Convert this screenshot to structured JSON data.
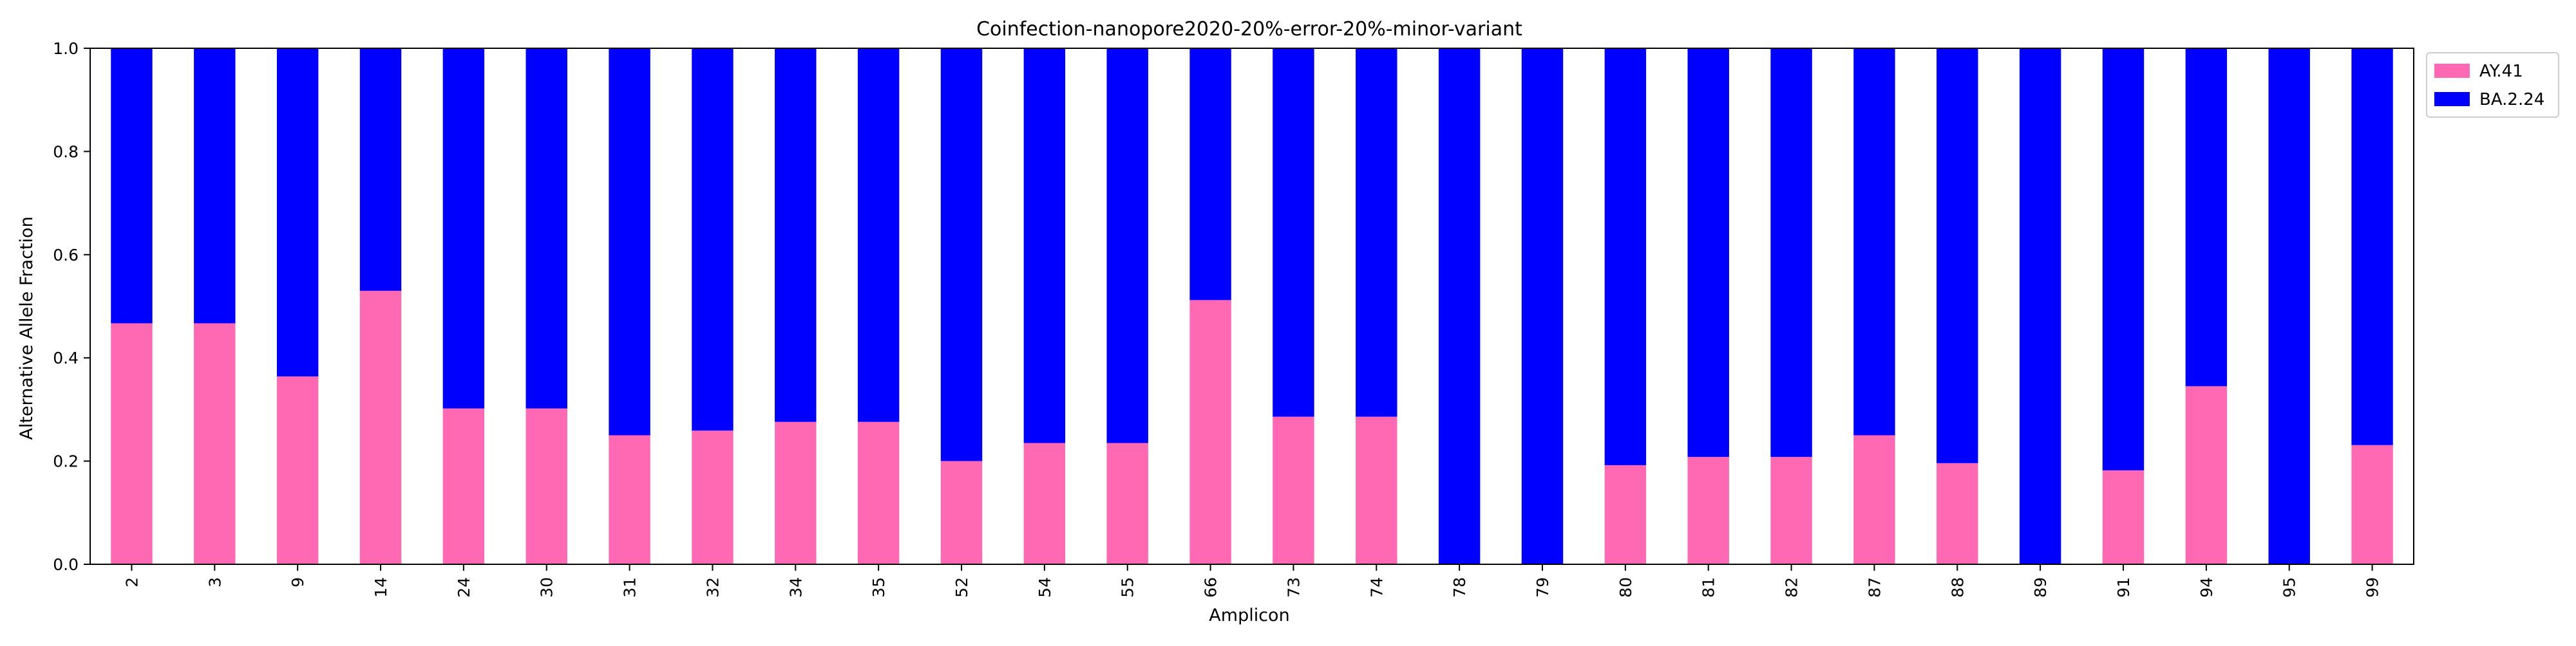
{
  "chart_data": {
    "type": "bar",
    "stacked": true,
    "title": "Coinfection-nanopore2020-20%-error-20%-minor-variant",
    "xlabel": "Amplicon",
    "ylabel": "Alternative Allele Fraction",
    "ylim": [
      0,
      1.0
    ],
    "yticks": [
      "0.0",
      "0.2",
      "0.4",
      "0.6",
      "0.8",
      "1.0"
    ],
    "grid": false,
    "legend_position": "outside-top-right",
    "categories": [
      "2",
      "3",
      "9",
      "14",
      "24",
      "30",
      "31",
      "32",
      "34",
      "35",
      "52",
      "54",
      "55",
      "66",
      "73",
      "74",
      "78",
      "79",
      "80",
      "81",
      "82",
      "87",
      "88",
      "89",
      "91",
      "94",
      "95",
      "99"
    ],
    "series": [
      {
        "name": "AY.41",
        "color": "#ff69b4",
        "values": [
          0.467,
          0.467,
          0.364,
          0.53,
          0.302,
          0.302,
          0.25,
          0.259,
          0.276,
          0.276,
          0.2,
          0.235,
          0.235,
          0.512,
          0.286,
          0.286,
          0.0,
          0.0,
          0.192,
          0.208,
          0.208,
          0.25,
          0.196,
          0.0,
          0.182,
          0.345,
          0.0,
          0.231
        ]
      },
      {
        "name": "BA.2.24",
        "color": "#0000ff",
        "values": [
          0.533,
          0.533,
          0.636,
          0.47,
          0.698,
          0.698,
          0.75,
          0.741,
          0.724,
          0.724,
          0.8,
          0.765,
          0.765,
          0.488,
          0.714,
          0.714,
          1.0,
          1.0,
          0.808,
          0.792,
          0.792,
          0.75,
          0.804,
          1.0,
          0.818,
          0.655,
          1.0,
          0.769
        ]
      }
    ]
  }
}
